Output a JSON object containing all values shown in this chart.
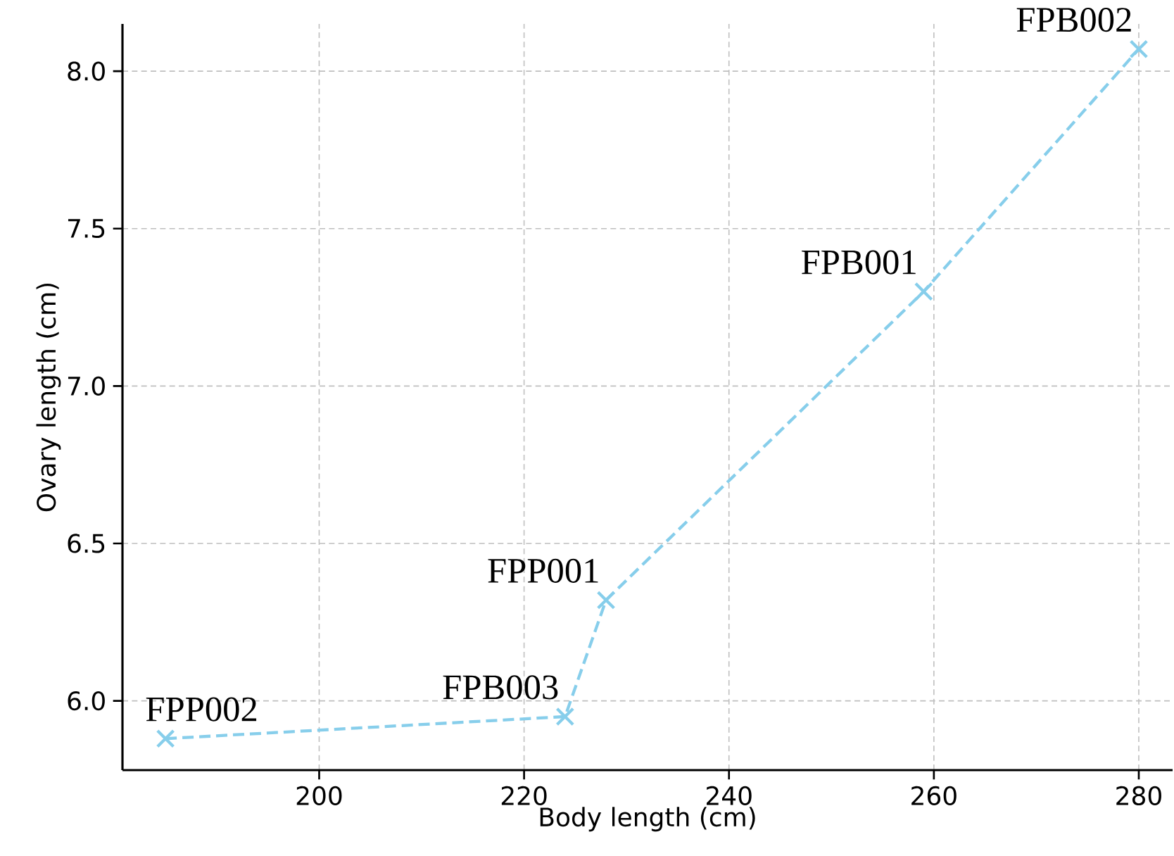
{
  "chart_data": {
    "type": "line",
    "xlabel": "Body length (cm)",
    "ylabel": "Ovary length (cm)",
    "x": [
      185,
      224,
      228,
      259,
      280
    ],
    "values": [
      5.88,
      5.95,
      6.32,
      7.3,
      8.07
    ],
    "color": "#87ceeb",
    "marker": "cross",
    "line_style": "dashed",
    "grid": true,
    "xlim": [
      180.8,
      283.3
    ],
    "ylim": [
      5.78,
      8.15
    ],
    "xticks": [
      200,
      220,
      240,
      260,
      280
    ],
    "yticks": [
      {
        "value": 6.0,
        "label": "6.0"
      },
      {
        "value": 6.5,
        "label": "6.5"
      },
      {
        "value": 7.0,
        "label": "7.0"
      },
      {
        "value": 7.5,
        "label": "7.5"
      },
      {
        "value": 8.0,
        "label": "8.0"
      }
    ],
    "annotations": [
      {
        "text": "FPP002",
        "x": 185,
        "y": 5.88
      },
      {
        "text": "FPB003",
        "x": 224,
        "y": 5.95
      },
      {
        "text": "FPP001",
        "x": 228,
        "y": 6.32
      },
      {
        "text": "FPB001",
        "x": 259,
        "y": 7.3
      },
      {
        "text": "FPB002",
        "x": 280,
        "y": 8.07
      }
    ]
  }
}
